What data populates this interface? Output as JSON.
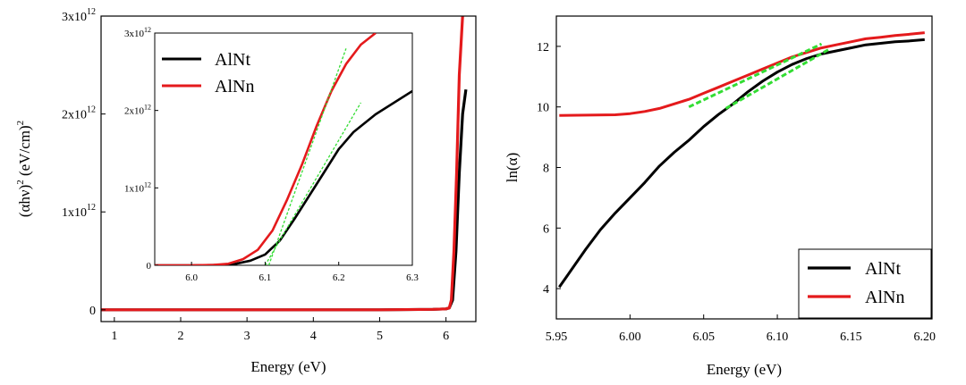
{
  "colors": {
    "AlNt": "#000000",
    "AlNn": "#e41a1c",
    "fit": "#33dd33"
  },
  "chart_data": [
    {
      "type": "line",
      "id": "left-main",
      "title": "",
      "xlabel": "Energy (eV)",
      "ylabel_base": "(αhν)",
      "ylabel_sup": "2",
      "ylabel_unit": " (eV/cm)",
      "ylabel_unit_sup": "2",
      "xlim": [
        0.8,
        6.45
      ],
      "ylim": [
        -0.12,
        3.0
      ],
      "x_ticks": [
        {
          "value": 1,
          "label": "1"
        },
        {
          "value": 2,
          "label": "2"
        },
        {
          "value": 3,
          "label": "3"
        },
        {
          "value": 4,
          "label": "4"
        },
        {
          "value": 5,
          "label": "5"
        },
        {
          "value": 6,
          "label": "6"
        }
      ],
      "y_ticks": [
        {
          "value": 0,
          "base": "0",
          "exp": ""
        },
        {
          "value": 1,
          "base": "1x10",
          "exp": "12"
        },
        {
          "value": 2,
          "base": "2x10",
          "exp": "12"
        },
        {
          "value": 3,
          "base": "3x10",
          "exp": "12"
        }
      ],
      "y_scale_note": "values in units of 1x10^12 (eV/cm)^2",
      "series": [
        {
          "name": "AlNt",
          "x": [
            0.8,
            5.0,
            5.8,
            6.0,
            6.05,
            6.1,
            6.15,
            6.2,
            6.25,
            6.3
          ],
          "y": [
            0,
            0,
            0.005,
            0.01,
            0.02,
            0.1,
            0.6,
            1.4,
            2.0,
            2.25
          ]
        },
        {
          "name": "AlNn",
          "x": [
            0.8,
            5.0,
            5.8,
            6.0,
            6.05,
            6.08,
            6.12,
            6.16,
            6.2,
            6.25
          ],
          "y": [
            0,
            0,
            0.005,
            0.01,
            0.02,
            0.1,
            0.6,
            1.4,
            2.4,
            3.0
          ]
        }
      ]
    },
    {
      "type": "line",
      "id": "left-inset",
      "title": "",
      "xlim": [
        5.95,
        6.3
      ],
      "ylim": [
        0,
        3.0
      ],
      "x_ticks": [
        {
          "value": 6.0,
          "label": "6.0"
        },
        {
          "value": 6.1,
          "label": "6.1"
        },
        {
          "value": 6.2,
          "label": "6.2"
        },
        {
          "value": 6.3,
          "label": "6.3"
        }
      ],
      "y_ticks": [
        {
          "value": 0,
          "base": "0",
          "exp": ""
        },
        {
          "value": 1,
          "base": "1x10",
          "exp": "12"
        },
        {
          "value": 2,
          "base": "2x10",
          "exp": "12"
        },
        {
          "value": 3,
          "base": "3x10",
          "exp": "12"
        }
      ],
      "legend": {
        "position": "top-left",
        "entries": [
          "AlNt",
          "AlNn"
        ]
      },
      "series": [
        {
          "name": "AlNt",
          "x": [
            5.95,
            6.0,
            6.04,
            6.06,
            6.08,
            6.1,
            6.12,
            6.14,
            6.16,
            6.18,
            6.2,
            6.22,
            6.25,
            6.3
          ],
          "y": [
            0,
            0,
            0.005,
            0.02,
            0.06,
            0.14,
            0.32,
            0.6,
            0.9,
            1.2,
            1.5,
            1.72,
            1.95,
            2.25
          ]
        },
        {
          "name": "AlNn",
          "x": [
            5.95,
            6.0,
            6.03,
            6.05,
            6.07,
            6.09,
            6.11,
            6.13,
            6.15,
            6.17,
            6.19,
            6.21,
            6.23,
            6.25
          ],
          "y": [
            0,
            0,
            0.005,
            0.02,
            0.08,
            0.2,
            0.45,
            0.85,
            1.3,
            1.8,
            2.25,
            2.6,
            2.85,
            3.0
          ]
        }
      ],
      "fit_lines": [
        {
          "name": "AlNt-fit",
          "x": [
            6.1,
            6.23
          ],
          "y": [
            0,
            2.1
          ]
        },
        {
          "name": "AlNn-fit",
          "x": [
            6.105,
            6.21
          ],
          "y": [
            0,
            2.8
          ]
        }
      ]
    },
    {
      "type": "line",
      "id": "right",
      "title": "",
      "xlabel": "Energy (eV)",
      "ylabel": "ln(α)",
      "xlim": [
        5.95,
        6.205
      ],
      "ylim": [
        3.0,
        13.0
      ],
      "x_ticks": [
        {
          "value": 5.95,
          "label": "5.95"
        },
        {
          "value": 6.0,
          "label": "6.00"
        },
        {
          "value": 6.05,
          "label": "6.05"
        },
        {
          "value": 6.1,
          "label": "6.10"
        },
        {
          "value": 6.15,
          "label": "6.15"
        },
        {
          "value": 6.2,
          "label": "6.20"
        }
      ],
      "y_ticks": [
        {
          "value": 4,
          "label": "4"
        },
        {
          "value": 6,
          "label": "6"
        },
        {
          "value": 8,
          "label": "8"
        },
        {
          "value": 10,
          "label": "10"
        },
        {
          "value": 12,
          "label": "12"
        }
      ],
      "legend": {
        "position": "bottom-right",
        "entries": [
          "AlNt",
          "AlNn"
        ]
      },
      "series": [
        {
          "name": "AlNt",
          "x": [
            5.952,
            5.97,
            5.98,
            5.99,
            6.0,
            6.01,
            6.02,
            6.03,
            6.04,
            6.05,
            6.06,
            6.07,
            6.08,
            6.09,
            6.1,
            6.11,
            6.12,
            6.13,
            6.14,
            6.15,
            6.16,
            6.17,
            6.18,
            6.19,
            6.2
          ],
          "y": [
            4.05,
            5.3,
            5.95,
            6.5,
            7.0,
            7.5,
            8.05,
            8.5,
            8.9,
            9.35,
            9.75,
            10.1,
            10.5,
            10.85,
            11.15,
            11.4,
            11.6,
            11.75,
            11.85,
            11.95,
            12.05,
            12.1,
            12.15,
            12.18,
            12.22
          ]
        },
        {
          "name": "AlNn",
          "x": [
            5.952,
            5.99,
            6.0,
            6.01,
            6.02,
            6.03,
            6.04,
            6.05,
            6.06,
            6.07,
            6.08,
            6.09,
            6.1,
            6.11,
            6.12,
            6.13,
            6.14,
            6.15,
            6.16,
            6.17,
            6.18,
            6.19,
            6.2
          ],
          "y": [
            9.72,
            9.74,
            9.78,
            9.85,
            9.95,
            10.1,
            10.25,
            10.45,
            10.65,
            10.85,
            11.05,
            11.25,
            11.45,
            11.65,
            11.8,
            11.95,
            12.05,
            12.15,
            12.25,
            12.3,
            12.36,
            12.4,
            12.45
          ]
        }
      ],
      "fit_lines": [
        {
          "name": "AlNn-fit",
          "x": [
            6.04,
            6.13
          ],
          "y": [
            10.0,
            12.08
          ]
        },
        {
          "name": "AlNt-fit",
          "x": [
            6.065,
            6.135
          ],
          "y": [
            9.95,
            11.9
          ]
        }
      ]
    }
  ]
}
